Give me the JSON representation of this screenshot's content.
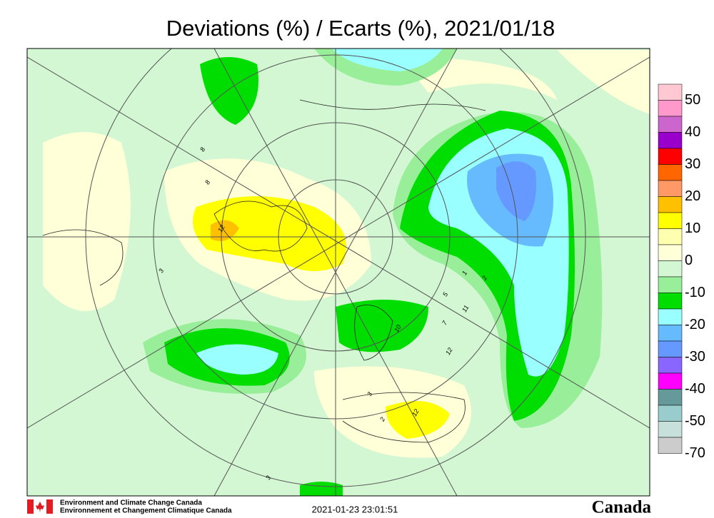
{
  "header": {
    "title": "Deviations (%) / Ecarts (%), 2021/01/18"
  },
  "legend": {
    "colors": [
      "#ffc8d2",
      "#ff99cc",
      "#cc66cc",
      "#9900cc",
      "#ff0000",
      "#ff6600",
      "#ff9966",
      "#ffc000",
      "#ffff00",
      "#ffffb0",
      "#ffffd8",
      "#d2f7d2",
      "#99ee99",
      "#00dd00",
      "#99ffff",
      "#66bbff",
      "#6699ff",
      "#8866ff",
      "#ff00ff",
      "#669999",
      "#99cccc",
      "#c8e0dc",
      "#cccccc"
    ],
    "labels": [
      "50",
      "40",
      "30",
      "20",
      "10",
      "0",
      "-10",
      "-20",
      "-30",
      "-40",
      "-50",
      "-70"
    ]
  },
  "map_labels": [
    "8",
    "8",
    "3",
    "12",
    "1",
    "2",
    "5",
    "11",
    "7",
    "12",
    "10",
    "3",
    "2",
    "12",
    "3"
  ],
  "footer": {
    "agency_en": "Environment and Climate Change Canada",
    "agency_fr": "Environnement et Changement Climatique Canada",
    "timestamp": "2021-01-23 23:01:51",
    "wordmark": "Canada"
  }
}
